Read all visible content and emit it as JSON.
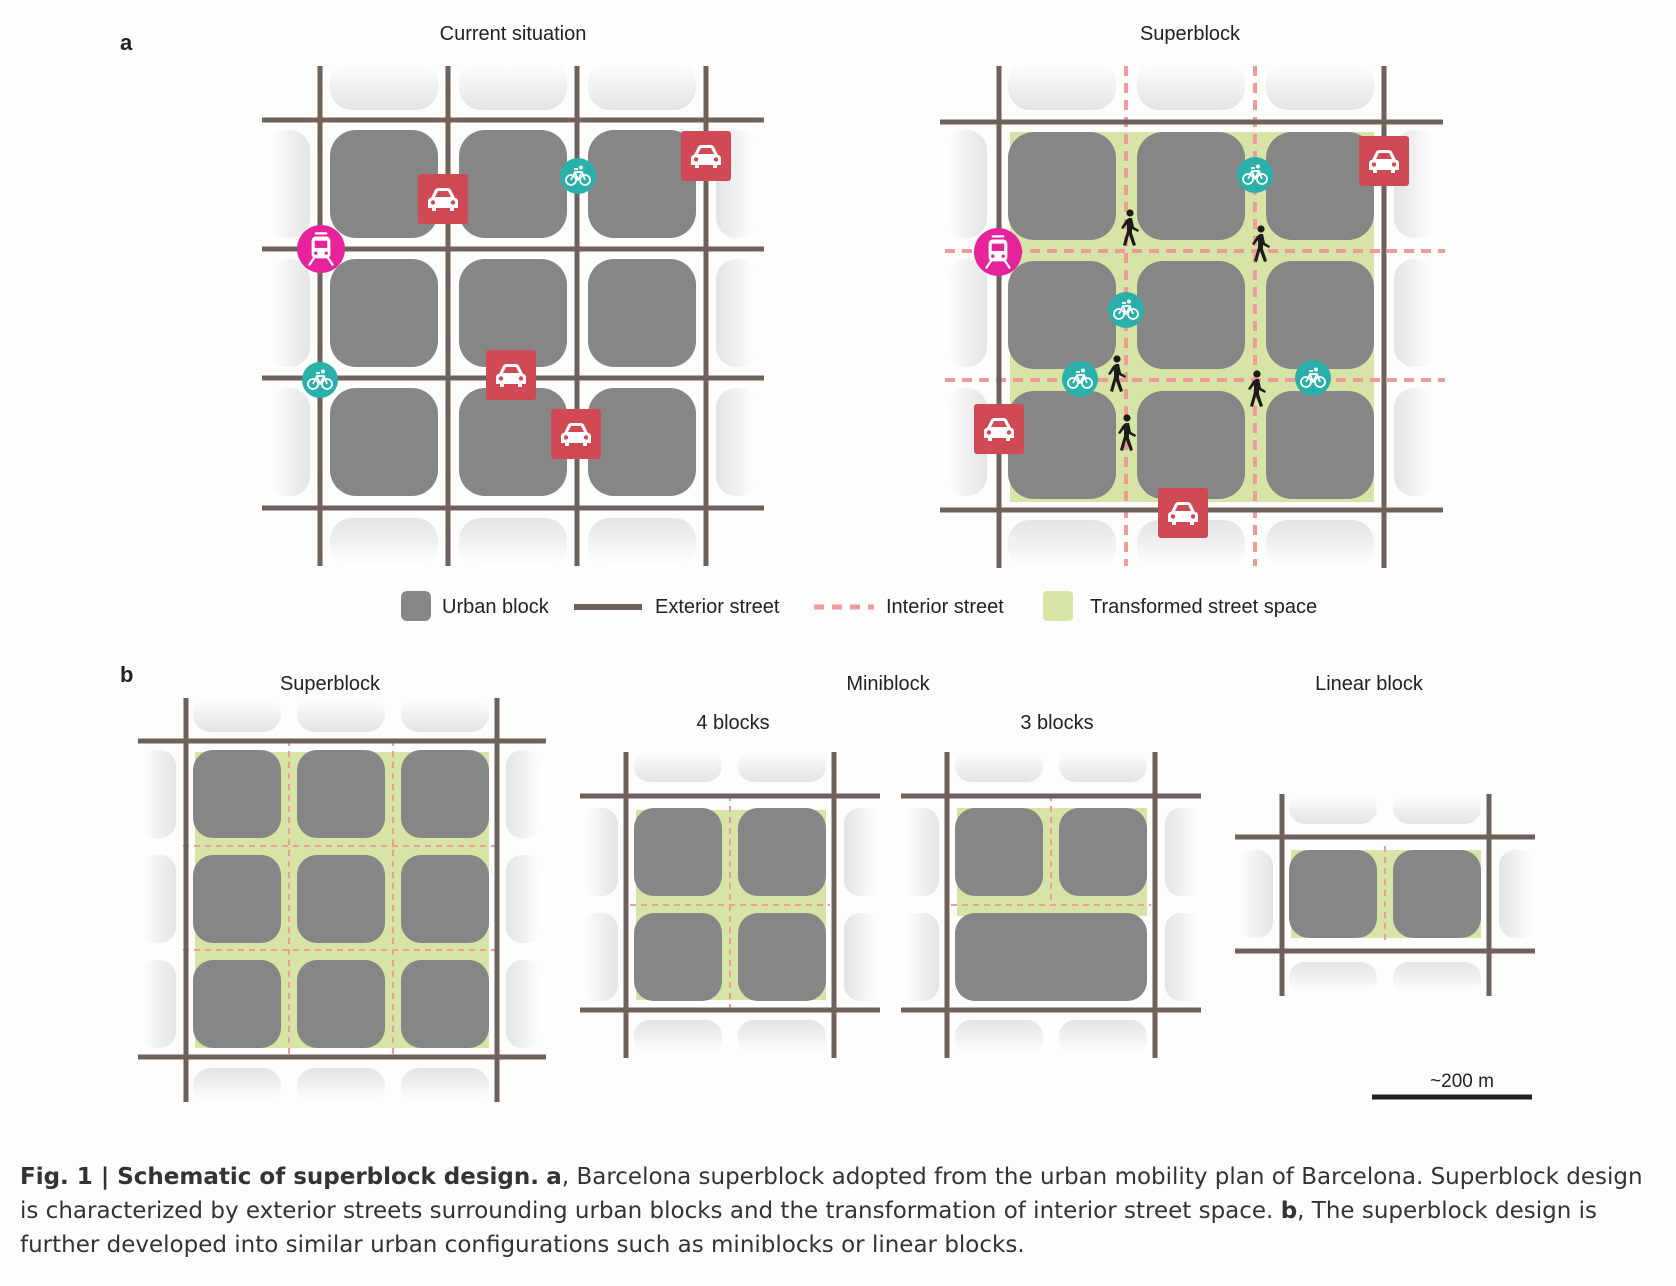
{
  "panel_labels": {
    "a": "a",
    "b": "b"
  },
  "panel_a": {
    "left_title": "Current situation",
    "right_title": "Superblock"
  },
  "legend": {
    "urban_block": "Urban block",
    "exterior_street": "Exterior street",
    "interior_street": "Interior street",
    "transformed": "Transformed street space"
  },
  "panel_b": {
    "superblock_title": "Superblock",
    "miniblock_title": "Miniblock",
    "four_blocks": "4 blocks",
    "three_blocks": "3 blocks",
    "linear_title": "Linear block",
    "scale_label": "~200 m"
  },
  "icons": {
    "car": "car-icon",
    "bike": "bicycle-icon",
    "tram": "tram-icon",
    "pedestrian": "pedestrian-icon"
  },
  "colors": {
    "block": "#858685",
    "street": "#6e615c",
    "interior": "#f09a9a",
    "transformed": "#d6e4a6",
    "car": "#cf4a55",
    "bike": "#2ab0aa",
    "tram": "#e6239a",
    "ghost": "#e6e6e6"
  },
  "caption": {
    "fig_label": "Fig. 1 | Schematic of superblock design.",
    "a_label": "a",
    "a_text": ", Barcelona superblock adopted from the urban mobility plan of Barcelona. Superblock design is characterized by exterior streets surrounding urban blocks and the transformation of interior street space.",
    "b_label": "b",
    "b_text": ", The superblock design is further developed into similar urban configurations such as miniblocks or linear blocks."
  }
}
